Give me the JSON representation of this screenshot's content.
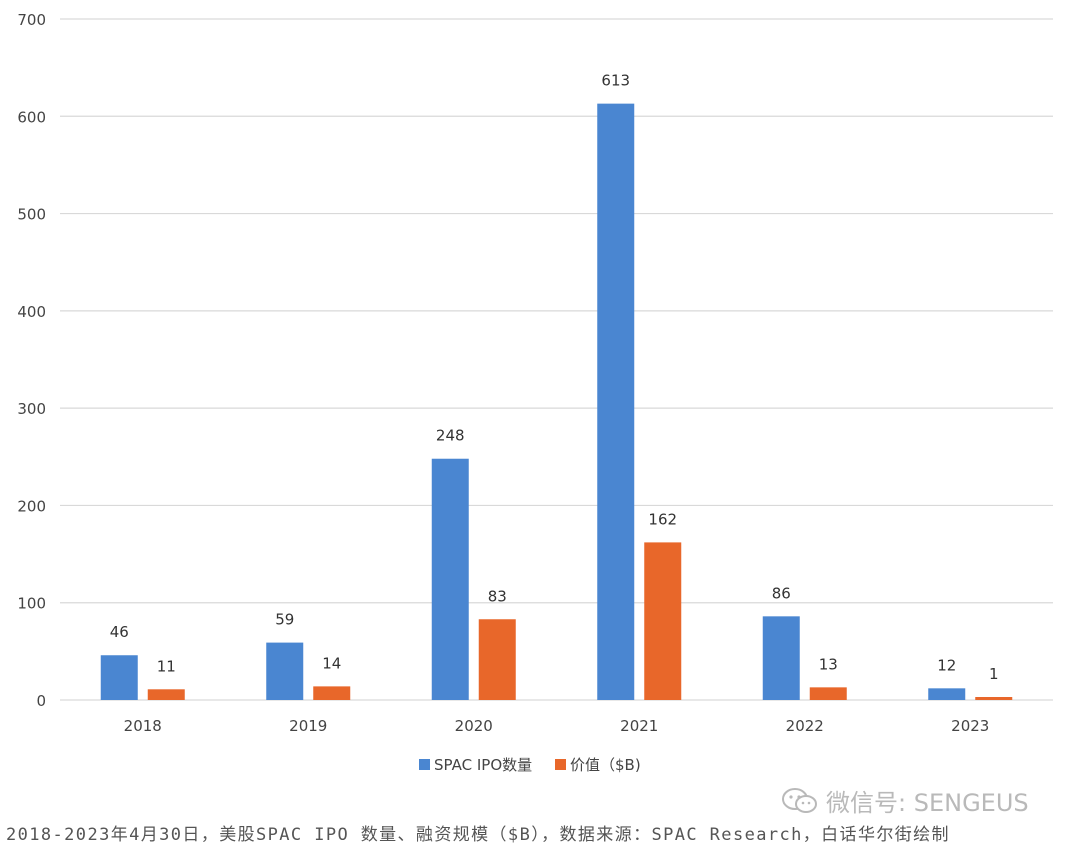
{
  "chart_data": {
    "type": "bar",
    "categories": [
      "2018",
      "2019",
      "2020",
      "2021",
      "2022",
      "2023"
    ],
    "series": [
      {
        "name": "SPAC IPO数量",
        "values": [
          46,
          59,
          248,
          613,
          86,
          12
        ],
        "color": "#4a86d1"
      },
      {
        "name": "价值（$B)",
        "values": [
          11,
          14,
          83,
          162,
          13,
          1
        ],
        "color": "#e8672a"
      }
    ],
    "y_ticks": [
      "0",
      "100",
      "200",
      "300",
      "400",
      "500",
      "600",
      "700"
    ],
    "ylim": [
      0,
      700
    ],
    "grid": true,
    "legend_position": "bottom-center"
  },
  "watermark": {
    "text": "微信号: SENGEUS",
    "icon": "wechat-icon"
  },
  "caption": "2018-2023年4月30日，美股SPAC IPO 数量、融资规模（$B），数据来源：SPAC Research，白话华尔街绘制"
}
